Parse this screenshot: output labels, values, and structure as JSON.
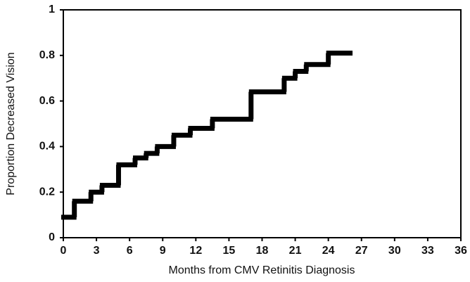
{
  "chart_data": {
    "type": "line",
    "drawstyle": "steps-post",
    "xlabel": "Months from CMV Retinitis Diagnosis",
    "ylabel": "Proportion Decreased Vision",
    "x": [
      0,
      1,
      2.5,
      3.5,
      5,
      6.5,
      7.5,
      8.5,
      10,
      11.5,
      13.5,
      17,
      20,
      21,
      22,
      24,
      26
    ],
    "values": [
      0.09,
      0.16,
      0.2,
      0.23,
      0.32,
      0.35,
      0.37,
      0.4,
      0.45,
      0.48,
      0.52,
      0.64,
      0.7,
      0.73,
      0.76,
      0.81,
      0.81
    ],
    "color": "#000000",
    "xlim": [
      0,
      36
    ],
    "xticks": [
      0,
      3,
      6,
      9,
      12,
      15,
      18,
      21,
      24,
      27,
      30,
      33,
      36
    ],
    "ylim": [
      0,
      1
    ],
    "yticks": [
      0,
      0.2,
      0.4,
      0.6,
      0.8,
      1
    ],
    "grid": false
  }
}
